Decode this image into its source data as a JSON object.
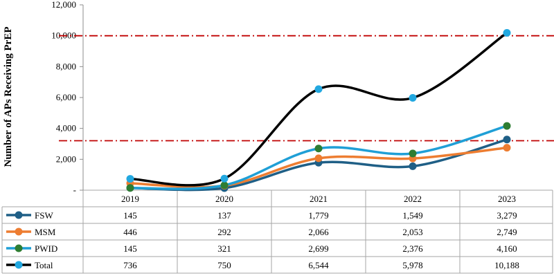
{
  "chart_data": {
    "type": "line",
    "title": "",
    "xlabel": "",
    "ylabel": "Number of APs Receiving PrEP",
    "categories": [
      "2019",
      "2020",
      "2021",
      "2022",
      "2023"
    ],
    "ylim": [
      0,
      12000
    ],
    "yticks": [
      0,
      2000,
      4000,
      6000,
      8000,
      10000,
      12000
    ],
    "ytick_labels": [
      "-",
      "2,000",
      "4,000",
      "6,000",
      "8,000",
      "10,000",
      "12,000"
    ],
    "reference_lines": [
      10000,
      3200
    ],
    "reference_line_color": "#c00000",
    "legend_placement": "data-table",
    "series": [
      {
        "name": "FSW",
        "values": [
          145,
          137,
          1779,
          1549,
          3279
        ],
        "labels": [
          "145",
          "137",
          "1,779",
          "1,549",
          "3,279"
        ],
        "line_color": "#1f5f86",
        "marker_color": "#1f5f86"
      },
      {
        "name": "MSM",
        "values": [
          446,
          292,
          2066,
          2053,
          2749
        ],
        "labels": [
          "446",
          "292",
          "2,066",
          "2,053",
          "2,749"
        ],
        "line_color": "#ed7d31",
        "marker_color": "#ed7d31"
      },
      {
        "name": "PWID",
        "values": [
          145,
          321,
          2699,
          2376,
          4160
        ],
        "labels": [
          "145",
          "321",
          "2,699",
          "2,376",
          "4,160"
        ],
        "line_color": "#1f9fd6",
        "marker_color": "#2e7d32"
      },
      {
        "name": "Total",
        "values": [
          736,
          750,
          6544,
          5978,
          10188
        ],
        "labels": [
          "736",
          "750",
          "6,544",
          "5,978",
          "10,188"
        ],
        "line_color": "#000000",
        "marker_color": "#22a8e0"
      }
    ]
  }
}
